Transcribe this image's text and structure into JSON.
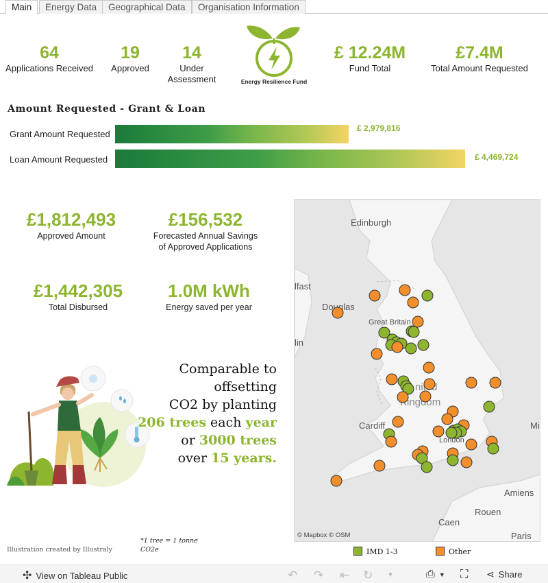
{
  "tabs": [
    {
      "label": "Main",
      "active": true
    },
    {
      "label": "Energy Data",
      "active": false
    },
    {
      "label": "Geographical Data",
      "active": false
    },
    {
      "label": "Organisation Information",
      "active": false
    }
  ],
  "kpis": {
    "applications": {
      "value": "64",
      "label": "Applications Received"
    },
    "approved": {
      "value": "19",
      "label": "Approved"
    },
    "under_assessment": {
      "value": "14",
      "label_line1": "Under",
      "label_line2": "Assessment"
    },
    "fund_total": {
      "value": "£ 12.24M",
      "label": "Fund Total"
    },
    "total_requested": {
      "value": "£7.4M",
      "label": "Total Amount Requested"
    }
  },
  "logo": {
    "text": "Energy Resilience Fund",
    "color": "#8db52f"
  },
  "amount_requested": {
    "title": "Amount Requested  -  Grant  &  Loan",
    "grant": {
      "label": "Grant Amount Requested",
      "value_text": "£ 2,979,816",
      "value": 2979816
    },
    "loan": {
      "label": "Loan Amount Requested",
      "value_text": "£ 4,469,724",
      "value": 4469724
    }
  },
  "metrics": {
    "approved_amount": {
      "value": "£1,812,493",
      "label": "Approved Amount"
    },
    "savings": {
      "value": "£156,532",
      "label_line1": "Forecasted Annual Savings",
      "label_line2": "of Approved Applications"
    },
    "disbursed": {
      "value": "£1,442,305",
      "label": "Total Disbursed"
    },
    "energy": {
      "value": "1.0M kWh",
      "label": "Energy saved per year"
    }
  },
  "comparison": {
    "line1": "Comparable to offsetting",
    "line2": "CO2 by planting",
    "trees1": "206 trees",
    "each": " each ",
    "year": "year",
    "or": "or ",
    "trees2": "3000 trees",
    "over": "over ",
    "years": "15 years."
  },
  "credit": "Illustration created by Illustraly",
  "footnote": {
    "line1": "*1 tree = 1 tonne",
    "line2": "CO2e"
  },
  "map": {
    "labels": {
      "edinburgh": "Edinburgh",
      "belfast": "lfast",
      "douglas": "Douglas",
      "dublin": "lin",
      "great_britain": "Great Britain",
      "united": "nited",
      "kingdom": "Kingdom",
      "cardiff": "Cardiff",
      "london": "London",
      "amiens": "Amiens",
      "rouen": "Rouen",
      "caen": "Caen",
      "paris": "Paris",
      "mi": "Mi"
    },
    "credit": "© Mapbox  © OSM",
    "colors": {
      "imd": "#8db52f",
      "other": "#f28e2b"
    },
    "points": [
      {
        "x": 590,
        "y": 422,
        "c": "other"
      },
      {
        "x": 623,
        "y": 430,
        "c": "imd"
      },
      {
        "x": 546,
        "y": 430,
        "c": "other"
      },
      {
        "x": 602,
        "y": 440,
        "c": "other"
      },
      {
        "x": 492,
        "y": 455,
        "c": "other"
      },
      {
        "x": 609,
        "y": 468,
        "c": "other"
      },
      {
        "x": 600,
        "y": 482,
        "c": "imd"
      },
      {
        "x": 603,
        "y": 483,
        "c": "imd"
      },
      {
        "x": 560,
        "y": 484,
        "c": "imd"
      },
      {
        "x": 572,
        "y": 494,
        "c": "imd"
      },
      {
        "x": 578,
        "y": 498,
        "c": "imd"
      },
      {
        "x": 585,
        "y": 500,
        "c": "imd"
      },
      {
        "x": 570,
        "y": 502,
        "c": "imd"
      },
      {
        "x": 579,
        "y": 505,
        "c": "other"
      },
      {
        "x": 599,
        "y": 507,
        "c": "imd"
      },
      {
        "x": 617,
        "y": 502,
        "c": "imd"
      },
      {
        "x": 549,
        "y": 515,
        "c": "other"
      },
      {
        "x": 625,
        "y": 535,
        "c": "other"
      },
      {
        "x": 571,
        "y": 552,
        "c": "other"
      },
      {
        "x": 588,
        "y": 555,
        "c": "imd"
      },
      {
        "x": 592,
        "y": 562,
        "c": "imd"
      },
      {
        "x": 595,
        "y": 566,
        "c": "imd"
      },
      {
        "x": 626,
        "y": 559,
        "c": "other"
      },
      {
        "x": 687,
        "y": 557,
        "c": "other"
      },
      {
        "x": 722,
        "y": 557,
        "c": "other"
      },
      {
        "x": 587,
        "y": 578,
        "c": "other"
      },
      {
        "x": 620,
        "y": 577,
        "c": "other"
      },
      {
        "x": 713,
        "y": 592,
        "c": "imd"
      },
      {
        "x": 660,
        "y": 599,
        "c": "other"
      },
      {
        "x": 652,
        "y": 610,
        "c": "other"
      },
      {
        "x": 580,
        "y": 614,
        "c": "other"
      },
      {
        "x": 676,
        "y": 619,
        "c": "other"
      },
      {
        "x": 639,
        "y": 628,
        "c": "other"
      },
      {
        "x": 661,
        "y": 627,
        "c": "imd"
      },
      {
        "x": 667,
        "y": 625,
        "c": "imd"
      },
      {
        "x": 672,
        "y": 628,
        "c": "imd"
      },
      {
        "x": 665,
        "y": 630,
        "c": "imd"
      },
      {
        "x": 658,
        "y": 630,
        "c": "imd"
      },
      {
        "x": 567,
        "y": 632,
        "c": "imd"
      },
      {
        "x": 570,
        "y": 643,
        "c": "other"
      },
      {
        "x": 687,
        "y": 647,
        "c": "other"
      },
      {
        "x": 717,
        "y": 643,
        "c": "other"
      },
      {
        "x": 719,
        "y": 653,
        "c": "imd"
      },
      {
        "x": 616,
        "y": 657,
        "c": "other"
      },
      {
        "x": 609,
        "y": 662,
        "c": "other"
      },
      {
        "x": 615,
        "y": 667,
        "c": "imd"
      },
      {
        "x": 660,
        "y": 660,
        "c": "other"
      },
      {
        "x": 660,
        "y": 670,
        "c": "imd"
      },
      {
        "x": 680,
        "y": 673,
        "c": "other"
      },
      {
        "x": 553,
        "y": 678,
        "c": "other"
      },
      {
        "x": 622,
        "y": 680,
        "c": "imd"
      },
      {
        "x": 490,
        "y": 700,
        "c": "other"
      }
    ]
  },
  "legend": {
    "imd": "IMD 1-3",
    "other": "Other"
  },
  "toolbar": {
    "view": "View on Tableau Public",
    "share": "Share"
  }
}
